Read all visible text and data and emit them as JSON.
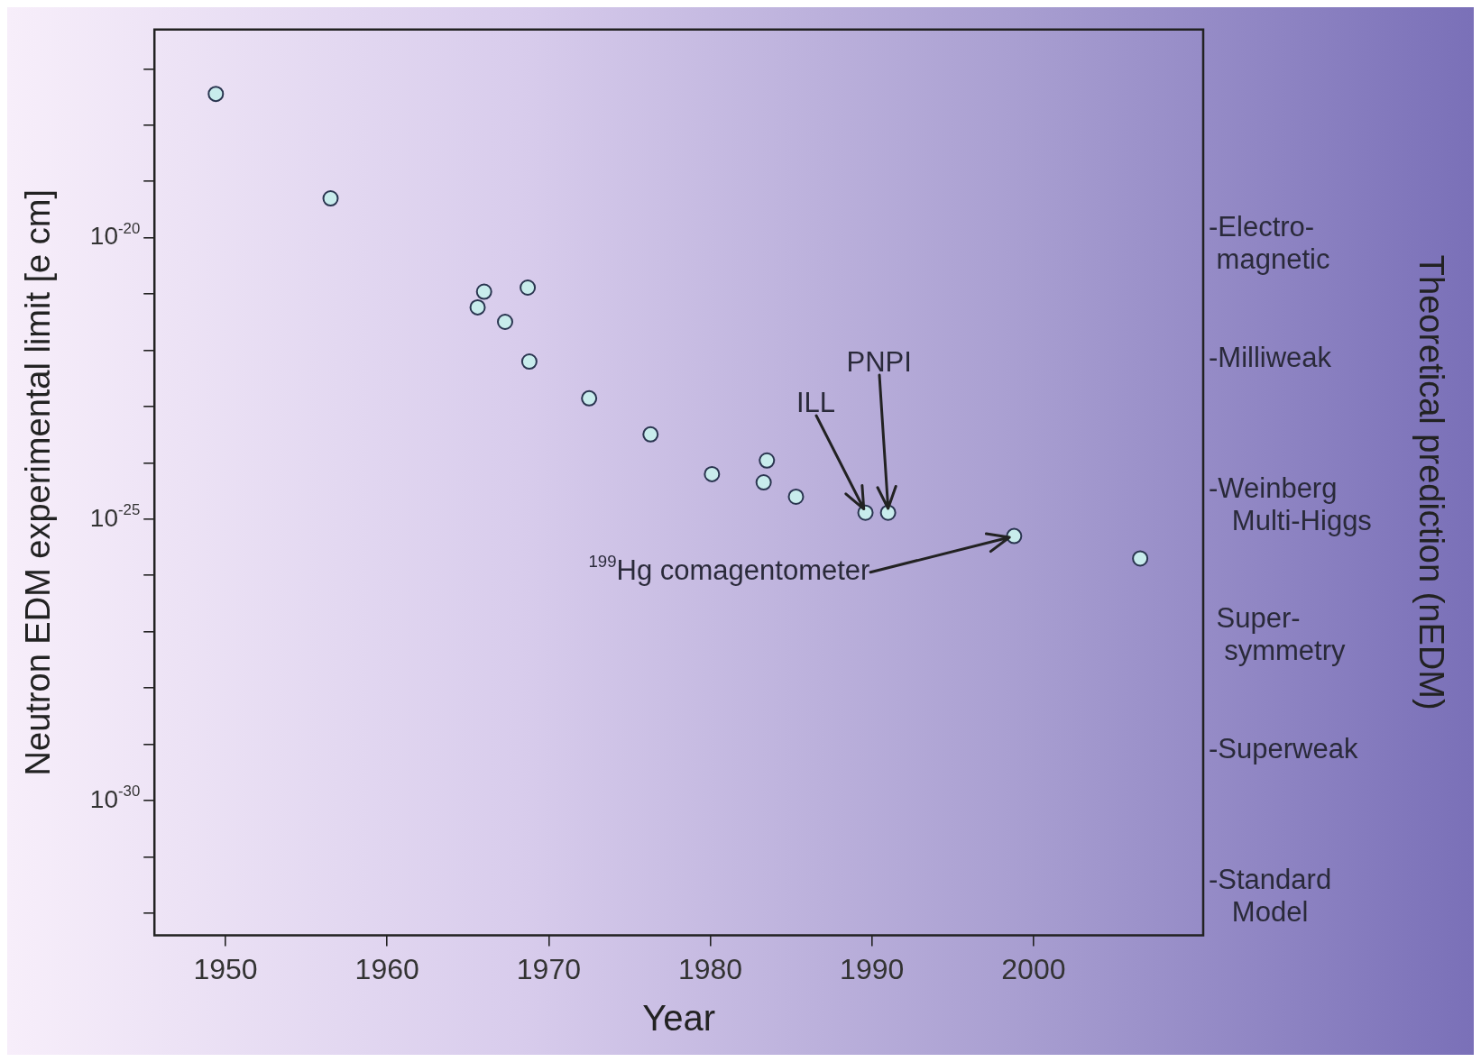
{
  "chart_data": {
    "type": "scatter",
    "xlabel": "Year",
    "ylabel": "Neutron EDM experimental limit [e cm]",
    "x": [
      1949.4,
      1956.5,
      1966.0,
      1965.6,
      1967.3,
      1968.7,
      1968.8,
      1972.5,
      1976.3,
      1980.1,
      1983.5,
      1983.3,
      1985.3,
      1989.6,
      1991.0,
      1998.8,
      2006.6
    ],
    "series": [
      {
        "color": "#c8ecec",
        "values": [
          3.6e-18,
          5e-20,
          1.1e-21,
          5.8e-22,
          3.2e-22,
          1.3e-21,
          6.3e-23,
          1.4e-23,
          3.2e-24,
          6.3e-25,
          1.1e-24,
          4.5e-25,
          2.5e-25,
          1.3e-25,
          1.3e-25,
          5e-26,
          2e-26
        ]
      }
    ],
    "marker": "circle",
    "log": "y",
    "xlim": [
      1945.6,
      2010.5
    ],
    "xticks": [
      1950,
      1960,
      1970,
      1980,
      1990,
      2000
    ],
    "ylim": [
      4e-33,
      5e-17
    ],
    "yticks": [
      {
        "value": 1e-17,
        "label": null
      },
      {
        "value": 1e-18,
        "label": null
      },
      {
        "value": 1e-19,
        "label": null
      },
      {
        "value": 1e-20,
        "label": "10$^{-20}$"
      },
      {
        "value": 1e-21,
        "label": null
      },
      {
        "value": 1e-22,
        "label": null
      },
      {
        "value": 1e-23,
        "label": null
      },
      {
        "value": 1e-24,
        "label": null
      },
      {
        "value": 1e-25,
        "label": "10$^{-25}$"
      },
      {
        "value": 1e-26,
        "label": null
      },
      {
        "value": 1e-27,
        "label": null
      },
      {
        "value": 1e-28,
        "label": null
      },
      {
        "value": 1e-29,
        "label": null
      },
      {
        "value": 1e-30,
        "label": "10$^{-30}$"
      },
      {
        "value": 1e-31,
        "label": null
      },
      {
        "value": 1e-32,
        "label": null
      }
    ],
    "grid": false,
    "legend": false,
    "annotations": [
      {
        "text": "ILL",
        "x": 1989.6,
        "y": 1.3e-25
      },
      {
        "text": "PNPI",
        "x": 1991.0,
        "y": 1.3e-25
      },
      {
        "text": "$^{199}$Hg comagentometer",
        "x": 1998.8,
        "y": 5e-26
      },
      "-Electro-\n magnetic",
      "-Milliweak",
      "-Weinberg\n   Multi-Higgs",
      " Super-\n  symmetry",
      "-Superweak",
      "-Standard\n   Model",
      "Theoretical prediction (nEDM)"
    ]
  }
}
